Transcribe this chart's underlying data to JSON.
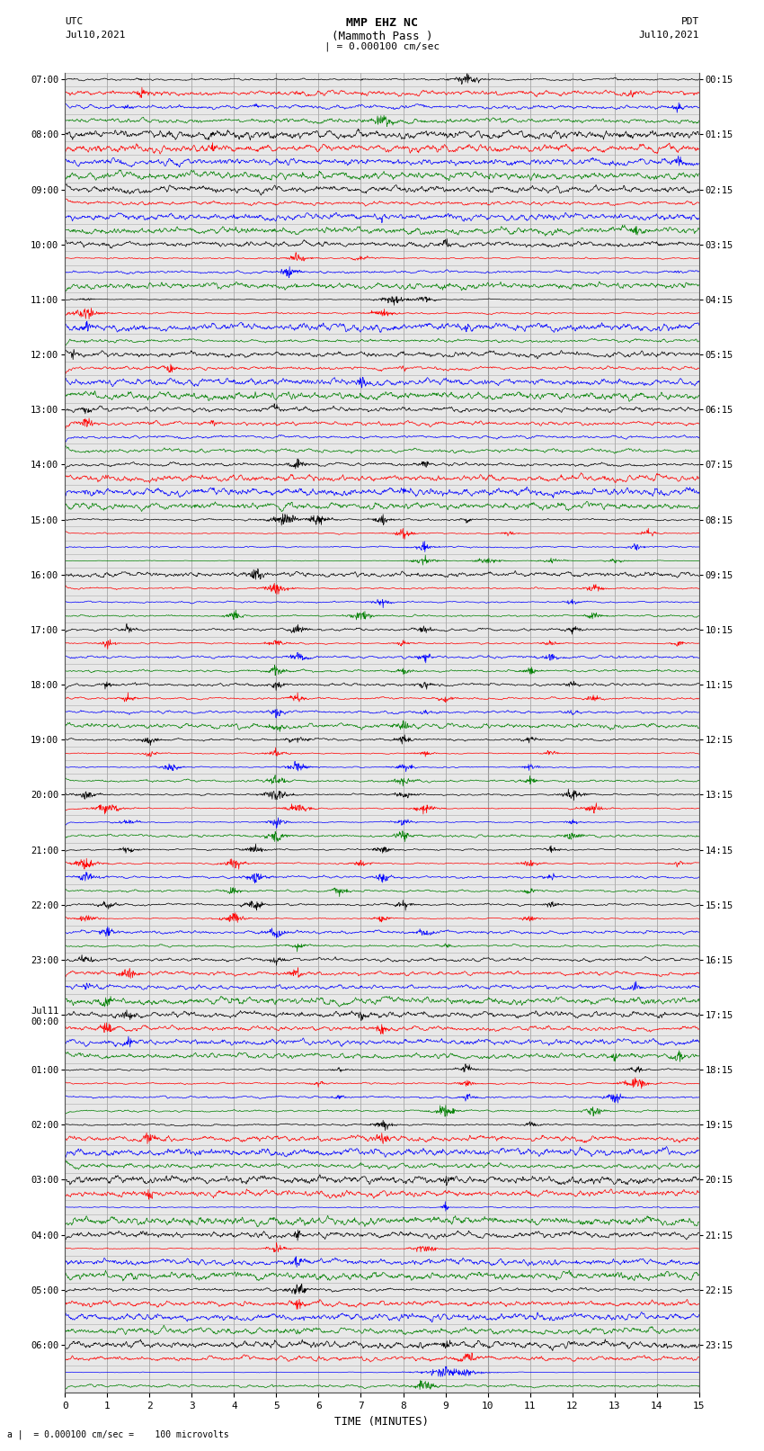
{
  "title_line1": "MMP EHZ NC",
  "title_line2": "(Mammoth Pass )",
  "title_scale": "| = 0.000100 cm/sec",
  "left_label_top": "UTC",
  "left_label_date": "Jul10,2021",
  "right_label_top": "PDT",
  "right_label_date": "Jul10,2021",
  "bottom_label": "TIME (MINUTES)",
  "scale_note": "= 0.000100 cm/sec =    100 microvolts",
  "xlabel_ticks": [
    0,
    1,
    2,
    3,
    4,
    5,
    6,
    7,
    8,
    9,
    10,
    11,
    12,
    13,
    14,
    15
  ],
  "utc_labels": [
    "07:00",
    "",
    "",
    "",
    "08:00",
    "",
    "",
    "",
    "09:00",
    "",
    "",
    "",
    "10:00",
    "",
    "",
    "",
    "11:00",
    "",
    "",
    "",
    "12:00",
    "",
    "",
    "",
    "13:00",
    "",
    "",
    "",
    "14:00",
    "",
    "",
    "",
    "15:00",
    "",
    "",
    "",
    "16:00",
    "",
    "",
    "",
    "17:00",
    "",
    "",
    "",
    "18:00",
    "",
    "",
    "",
    "19:00",
    "",
    "",
    "",
    "20:00",
    "",
    "",
    "",
    "21:00",
    "",
    "",
    "",
    "22:00",
    "",
    "",
    "",
    "23:00",
    "",
    "",
    "",
    "Jul11\n00:00",
    "",
    "",
    "",
    "01:00",
    "",
    "",
    "",
    "02:00",
    "",
    "",
    "",
    "03:00",
    "",
    "",
    "",
    "04:00",
    "",
    "",
    "",
    "05:00",
    "",
    "",
    "",
    "06:00",
    "",
    "",
    ""
  ],
  "pdt_labels": [
    "00:15",
    "",
    "",
    "",
    "01:15",
    "",
    "",
    "",
    "02:15",
    "",
    "",
    "",
    "03:15",
    "",
    "",
    "",
    "04:15",
    "",
    "",
    "",
    "05:15",
    "",
    "",
    "",
    "06:15",
    "",
    "",
    "",
    "07:15",
    "",
    "",
    "",
    "08:15",
    "",
    "",
    "",
    "09:15",
    "",
    "",
    "",
    "10:15",
    "",
    "",
    "",
    "11:15",
    "",
    "",
    "",
    "12:15",
    "",
    "",
    "",
    "13:15",
    "",
    "",
    "",
    "14:15",
    "",
    "",
    "",
    "15:15",
    "",
    "",
    "",
    "16:15",
    "",
    "",
    "",
    "17:15",
    "",
    "",
    "",
    "18:15",
    "",
    "",
    "",
    "19:15",
    "",
    "",
    "",
    "20:15",
    "",
    "",
    "",
    "21:15",
    "",
    "",
    "",
    "22:15",
    "",
    "",
    "",
    "23:15",
    "",
    "",
    ""
  ],
  "trace_colors": [
    "black",
    "red",
    "blue",
    "green"
  ],
  "num_hours": 24,
  "traces_per_hour": 4,
  "bg_color": "#f0f0f0",
  "grid_color": "#888888",
  "trace_lw": 0.5,
  "figsize": [
    8.5,
    16.13
  ],
  "dpi": 100
}
